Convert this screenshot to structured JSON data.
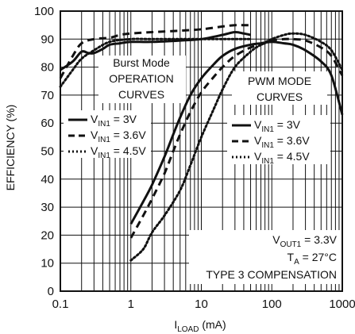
{
  "chart_data": {
    "type": "line",
    "title": "",
    "xlabel": {
      "main": "I",
      "sub": "LOAD",
      "unit": " (mA)"
    },
    "ylabel": "EFFICIENCY (%)",
    "xscale": "log",
    "xlim": [
      0.1,
      1000
    ],
    "ylim": [
      0,
      100
    ],
    "grid": true,
    "x_ticks": [
      "0.1",
      "1",
      "10",
      "100",
      "1000"
    ],
    "y_ticks": [
      "0",
      "10",
      "20",
      "30",
      "40",
      "50",
      "60",
      "70",
      "80",
      "90",
      "100"
    ],
    "annotations": {
      "burst": [
        "Burst Mode",
        "OPERATION",
        "CURVES"
      ],
      "pwm": [
        "PWM MODE",
        "CURVES"
      ],
      "conditions": {
        "vout": {
          "main": "V",
          "sub": "OUT1",
          "rest": " = 3.3V"
        },
        "ta": {
          "main": "T",
          "sub": "A",
          "rest": " = 27°C"
        },
        "comp": "TYPE 3 COMPENSATION"
      }
    },
    "legend_burst": [
      {
        "main": "V",
        "sub": "IN1",
        "rest": " = 3V"
      },
      {
        "main": "V",
        "sub": "IN1",
        "rest": " = 3.6V"
      },
      {
        "main": "V",
        "sub": "IN1",
        "rest": " = 4.5V"
      }
    ],
    "legend_pwm": [
      {
        "main": "V",
        "sub": "IN1",
        "rest": " = 3V"
      },
      {
        "main": "V",
        "sub": "IN1",
        "rest": " = 3.6V"
      },
      {
        "main": "V",
        "sub": "IN1",
        "rest": " = 4.5V"
      }
    ],
    "series": [
      {
        "group": "burst",
        "style": "solid",
        "x": [
          0.1,
          0.15,
          0.2,
          0.25,
          0.3,
          0.4,
          0.5,
          0.7,
          1,
          2,
          5,
          10,
          20,
          30,
          40,
          50
        ],
        "y": [
          79,
          82,
          85.5,
          85,
          85,
          86.5,
          88,
          88.5,
          89,
          89,
          89.5,
          90,
          91.5,
          92.5,
          92,
          91.5
        ]
      },
      {
        "group": "burst",
        "style": "dashed",
        "x": [
          0.1,
          0.15,
          0.2,
          0.3,
          0.5,
          0.7,
          1,
          2,
          5,
          10,
          20,
          30,
          40,
          50
        ],
        "y": [
          76,
          84,
          88.5,
          90,
          90.5,
          91.5,
          92,
          92.5,
          93,
          93.5,
          94.5,
          95,
          95,
          95
        ]
      },
      {
        "group": "burst",
        "style": "dotted",
        "x": [
          0.1,
          0.15,
          0.2,
          0.3,
          0.5,
          1,
          2,
          5,
          10,
          20,
          30,
          50
        ],
        "y": [
          73,
          79,
          83,
          86,
          89,
          90,
          90,
          90,
          90,
          90,
          90,
          90
        ]
      },
      {
        "group": "pwm",
        "style": "solid",
        "x": [
          1,
          1.5,
          2,
          3,
          4,
          5,
          7,
          10,
          15,
          20,
          30,
          50,
          70,
          100,
          150,
          200,
          300,
          500,
          700,
          1000
        ],
        "y": [
          24,
          32,
          38,
          48,
          56,
          62,
          70,
          76,
          81,
          84,
          86.5,
          88,
          88.5,
          89,
          88.5,
          88,
          86,
          82,
          77,
          63
        ]
      },
      {
        "group": "pwm",
        "style": "dashed",
        "x": [
          1,
          1.5,
          2,
          3,
          4,
          5,
          7,
          10,
          15,
          20,
          30,
          50,
          70,
          100,
          150,
          200,
          300,
          500,
          700,
          1000
        ],
        "y": [
          19,
          27,
          33,
          42,
          50,
          56,
          64,
          71,
          76.5,
          80,
          84,
          87,
          88,
          89.5,
          90,
          90,
          89.5,
          87,
          84,
          77
        ]
      },
      {
        "group": "pwm",
        "style": "dotted",
        "x": [
          1,
          1.5,
          2,
          3,
          5,
          7,
          10,
          15,
          20,
          30,
          50,
          70,
          100,
          150,
          200,
          300,
          500,
          700,
          1000
        ],
        "y": [
          11,
          15,
          21,
          27,
          36,
          45,
          55,
          65,
          72,
          80,
          85.5,
          88,
          90,
          91.5,
          92,
          91.5,
          89,
          86,
          79
        ]
      }
    ]
  }
}
